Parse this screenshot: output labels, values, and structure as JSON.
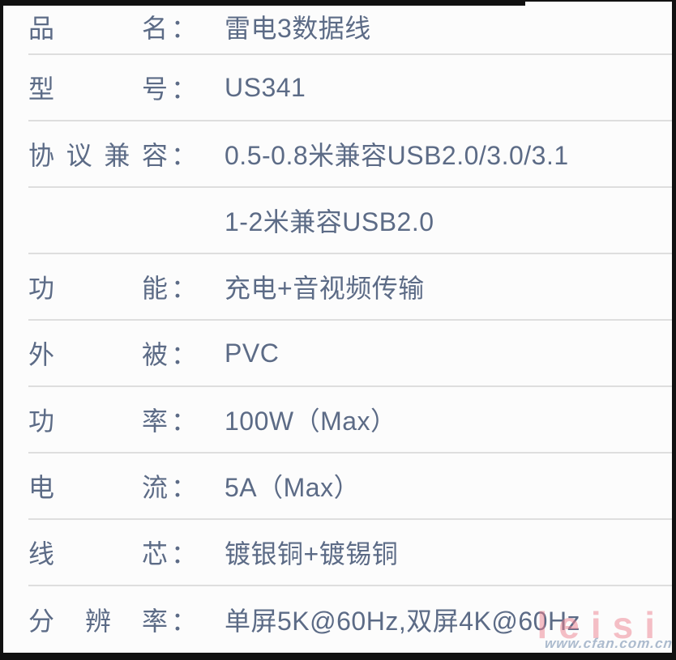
{
  "colors": {
    "background": "#fcfcfc",
    "text": "#5c6b86",
    "divider": "#dedede",
    "frame": "#111111",
    "wm_brand": "#ee8190",
    "wm_url": "#9fb0c6"
  },
  "spec_table": {
    "colon": "：",
    "rows": [
      {
        "label": "品名",
        "value": "雷电3数据线"
      },
      {
        "label": "型号",
        "value": "US341"
      },
      {
        "label": "协议兼容",
        "value": "0.5-0.8米兼容USB2.0/3.0/3.1"
      },
      {
        "label": "",
        "value": "1-2米兼容USB2.0"
      },
      {
        "label": "功能",
        "value": "充电+音视频传输"
      },
      {
        "label": "外被",
        "value": "PVC"
      },
      {
        "label": "功率",
        "value": "100W（Max）"
      },
      {
        "label": "电流",
        "value": "5A（Max）"
      },
      {
        "label": "线芯",
        "value": "镀银铜+镀锡铜"
      },
      {
        "label": "分辨率",
        "value": "单屏5K@60Hz,双屏4K@60Hz"
      }
    ]
  },
  "watermark": {
    "brand": "leisi",
    "url": "www.cfan.com.cn"
  }
}
